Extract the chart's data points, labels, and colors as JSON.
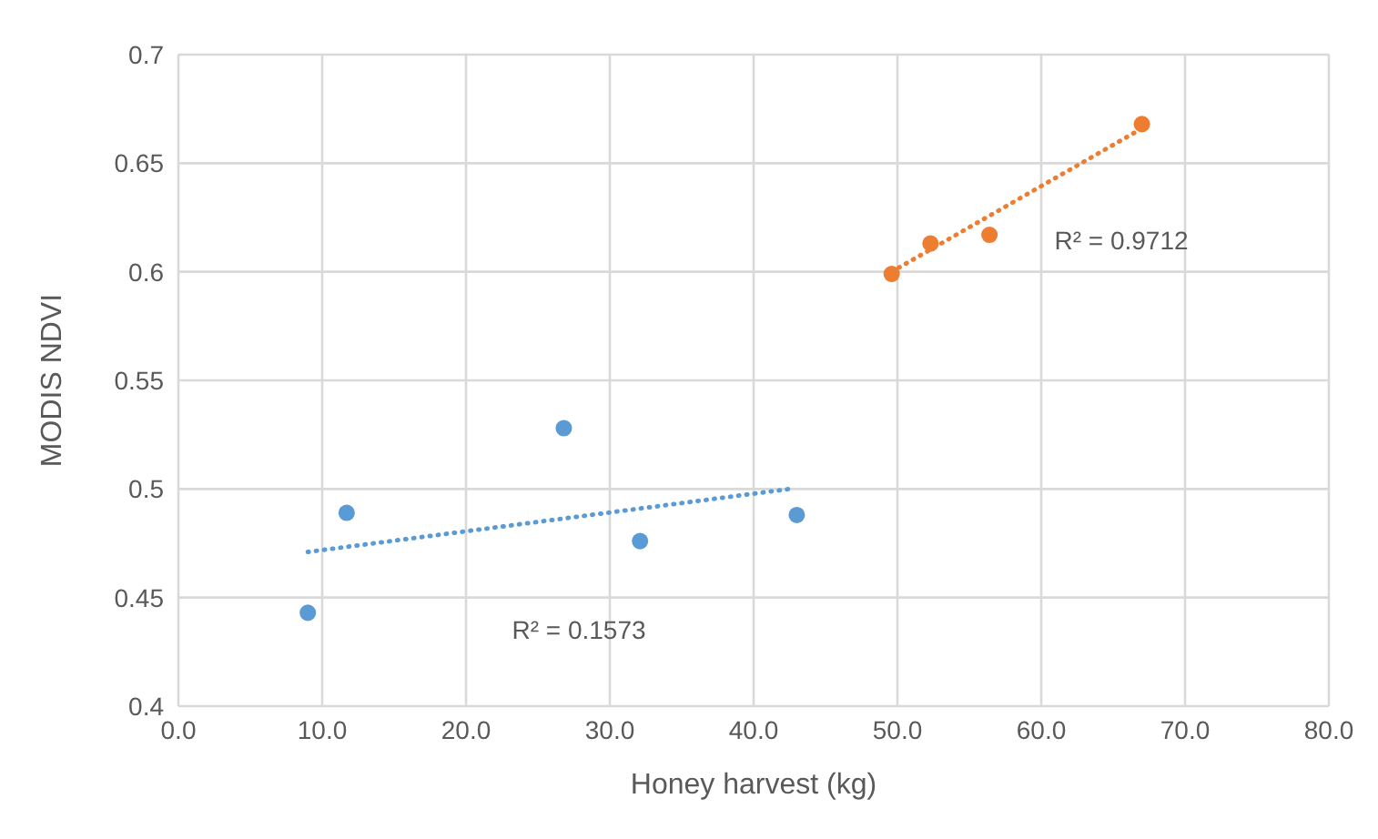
{
  "chart_data": {
    "type": "scatter",
    "xlabel": "Honey harvest (kg)",
    "ylabel": "MODIS NDVI",
    "xlim": [
      0,
      80
    ],
    "xticks": [
      {
        "value": 0,
        "label": "0.0"
      },
      {
        "value": 10,
        "label": "10.0"
      },
      {
        "value": 20,
        "label": "20.0"
      },
      {
        "value": 30,
        "label": "30.0"
      },
      {
        "value": 40,
        "label": "40.0"
      },
      {
        "value": 50,
        "label": "50.0"
      },
      {
        "value": 60,
        "label": "60.0"
      },
      {
        "value": 70,
        "label": "70.0"
      },
      {
        "value": 80,
        "label": "80.0"
      }
    ],
    "ylim": [
      0.4,
      0.7
    ],
    "yticks": [
      0.4,
      0.45,
      0.5,
      0.55,
      0.6,
      0.65,
      0.7
    ],
    "grid": true,
    "series": [
      {
        "color": "#5b9bd5",
        "marker": "circle",
        "x": [
          9,
          11.7,
          26.8,
          32.1,
          43
        ],
        "values": [
          0.443,
          0.489,
          0.528,
          0.476,
          0.488
        ]
      },
      {
        "color": "#ed7d31",
        "marker": "circle",
        "x": [
          49.6,
          52.3,
          56.4,
          67
        ],
        "values": [
          0.599,
          0.613,
          0.617,
          0.668
        ]
      },
      {
        "type": "line",
        "color": "#5b9bd5",
        "marker": "none",
        "line_style": "dotted",
        "x": [
          9,
          42.5
        ],
        "values": [
          0.471,
          0.5
        ]
      },
      {
        "type": "line",
        "color": "#ed7d31",
        "marker": "none",
        "line_style": "dotted",
        "x": [
          49.6,
          67
        ],
        "values": [
          0.6,
          0.666
        ]
      }
    ],
    "annotations": [
      "R² = 0.1573",
      "R² = 0.9712"
    ]
  }
}
